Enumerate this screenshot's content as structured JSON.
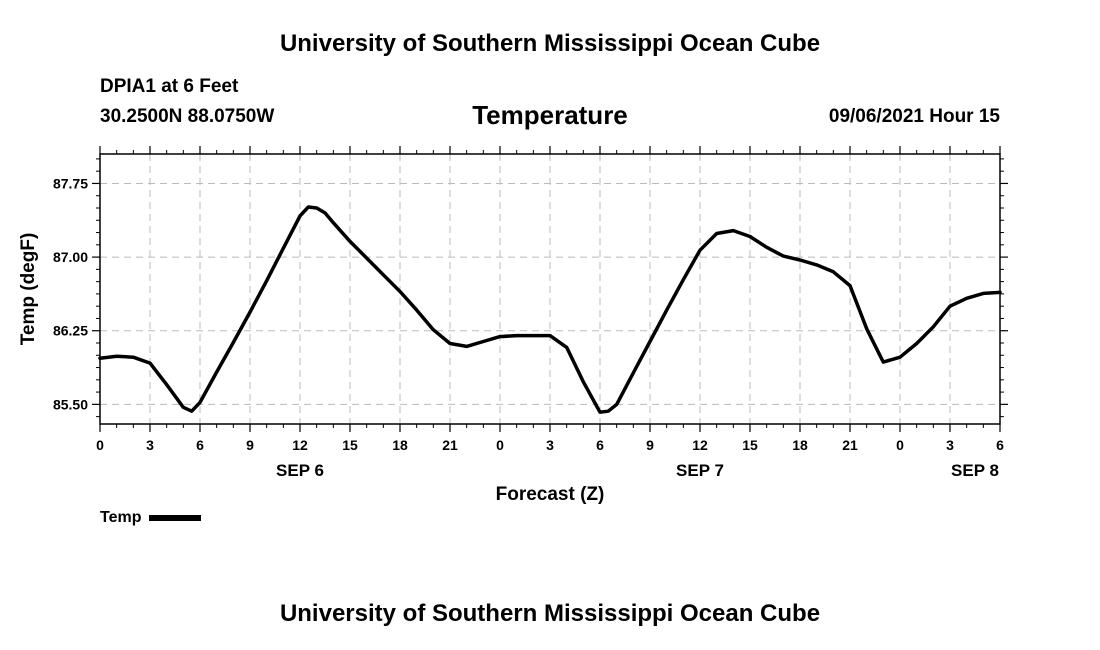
{
  "header": {
    "top_title": "University of Southern Mississippi Ocean Cube",
    "station": "DPIA1 at 6 Feet",
    "coords": "30.2500N  88.0750W",
    "datetime": "09/06/2021 Hour 15"
  },
  "footer": {
    "bottom_title": "University of Southern Mississippi Ocean Cube"
  },
  "chart_data": {
    "type": "line",
    "title": "Temperature",
    "xlabel": "Forecast (Z)",
    "ylabel": "Temp (degF)",
    "xlim": [
      0,
      54
    ],
    "ylim": [
      85.3,
      88.05
    ],
    "grid": true,
    "legend": {
      "position": "bottom-left",
      "entries": [
        "Temp"
      ]
    },
    "x_ticks": [
      0,
      3,
      6,
      9,
      12,
      15,
      18,
      21,
      24,
      27,
      30,
      33,
      36,
      39,
      42,
      45,
      48,
      51,
      54
    ],
    "x_tick_labels": [
      "0",
      "3",
      "6",
      "9",
      "12",
      "15",
      "18",
      "21",
      "0",
      "3",
      "6",
      "9",
      "12",
      "15",
      "18",
      "21",
      "0",
      "3",
      "6"
    ],
    "day_labels": [
      {
        "x": 12,
        "label": "SEP 6"
      },
      {
        "x": 36,
        "label": "SEP 7"
      },
      {
        "x": 52.5,
        "label": "SEP 8"
      }
    ],
    "y_ticks": [
      85.5,
      86.25,
      87.0,
      87.75
    ],
    "y_tick_labels": [
      "85.50",
      "86.25",
      "87.00",
      "87.75"
    ],
    "series": [
      {
        "name": "Temp",
        "color": "#000000",
        "x": [
          0,
          1,
          2,
          3,
          4,
          5,
          5.5,
          6,
          7,
          8,
          9,
          10,
          11,
          12,
          12.5,
          13,
          13.5,
          14,
          15,
          16,
          17,
          18,
          19,
          20,
          21,
          22,
          23,
          24,
          25,
          26,
          27,
          28,
          29,
          30,
          30.5,
          31,
          32,
          33,
          34,
          35,
          36,
          37,
          38,
          39,
          40,
          41,
          42,
          43,
          44,
          45,
          46,
          47,
          48,
          49,
          50,
          51,
          52,
          53,
          54
        ],
        "values": [
          85.97,
          85.99,
          85.98,
          85.92,
          85.7,
          85.47,
          85.43,
          85.52,
          85.83,
          86.13,
          86.44,
          86.76,
          87.09,
          87.42,
          87.51,
          87.5,
          87.45,
          87.35,
          87.16,
          86.99,
          86.82,
          86.65,
          86.46,
          86.26,
          86.12,
          86.09,
          86.14,
          86.19,
          86.2,
          86.2,
          86.2,
          86.08,
          85.73,
          85.42,
          85.43,
          85.5,
          85.82,
          86.14,
          86.46,
          86.77,
          87.07,
          87.24,
          87.27,
          87.21,
          87.1,
          87.01,
          86.97,
          86.92,
          86.85,
          86.71,
          86.27,
          85.93,
          85.98,
          86.12,
          86.29,
          86.5,
          86.58,
          86.63,
          86.64
        ]
      }
    ]
  }
}
